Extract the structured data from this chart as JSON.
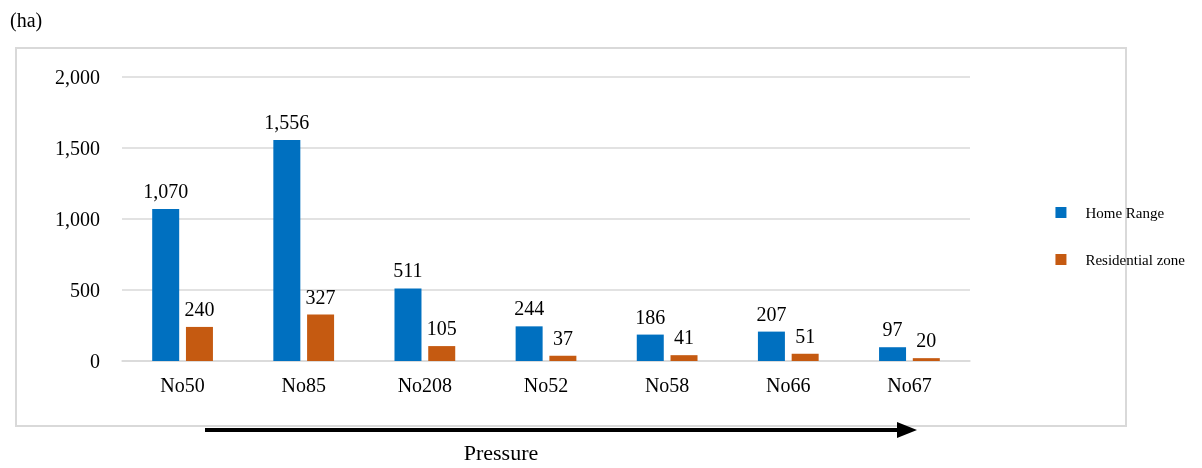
{
  "chart_data": {
    "type": "bar",
    "ylabel": "(ha)",
    "xlabel": "Pressure",
    "categories": [
      "No50",
      "No85",
      "No208",
      "No52",
      "No58",
      "No66",
      "No67"
    ],
    "series": [
      {
        "name": "Home Range",
        "color": "#0070c0",
        "values": [
          1070,
          1556,
          511,
          244,
          186,
          207,
          97
        ],
        "value_labels": [
          "1,070",
          "1,556",
          "511",
          "244",
          "186",
          "207",
          "97"
        ]
      },
      {
        "name": "Residential zone",
        "color": "#c55a11",
        "values": [
          240,
          327,
          105,
          37,
          41,
          51,
          20
        ],
        "value_labels": [
          "240",
          "327",
          "105",
          "37",
          "41",
          "51",
          "20"
        ]
      }
    ],
    "ylim": [
      0,
      2000
    ],
    "yticks": [
      0,
      500,
      {
        "value": 1000,
        "label": "1,000"
      },
      {
        "value": 1500,
        "label": "1,500"
      },
      {
        "value": 2000,
        "label": "2,000"
      }
    ],
    "grid": "y",
    "legend": "right"
  }
}
